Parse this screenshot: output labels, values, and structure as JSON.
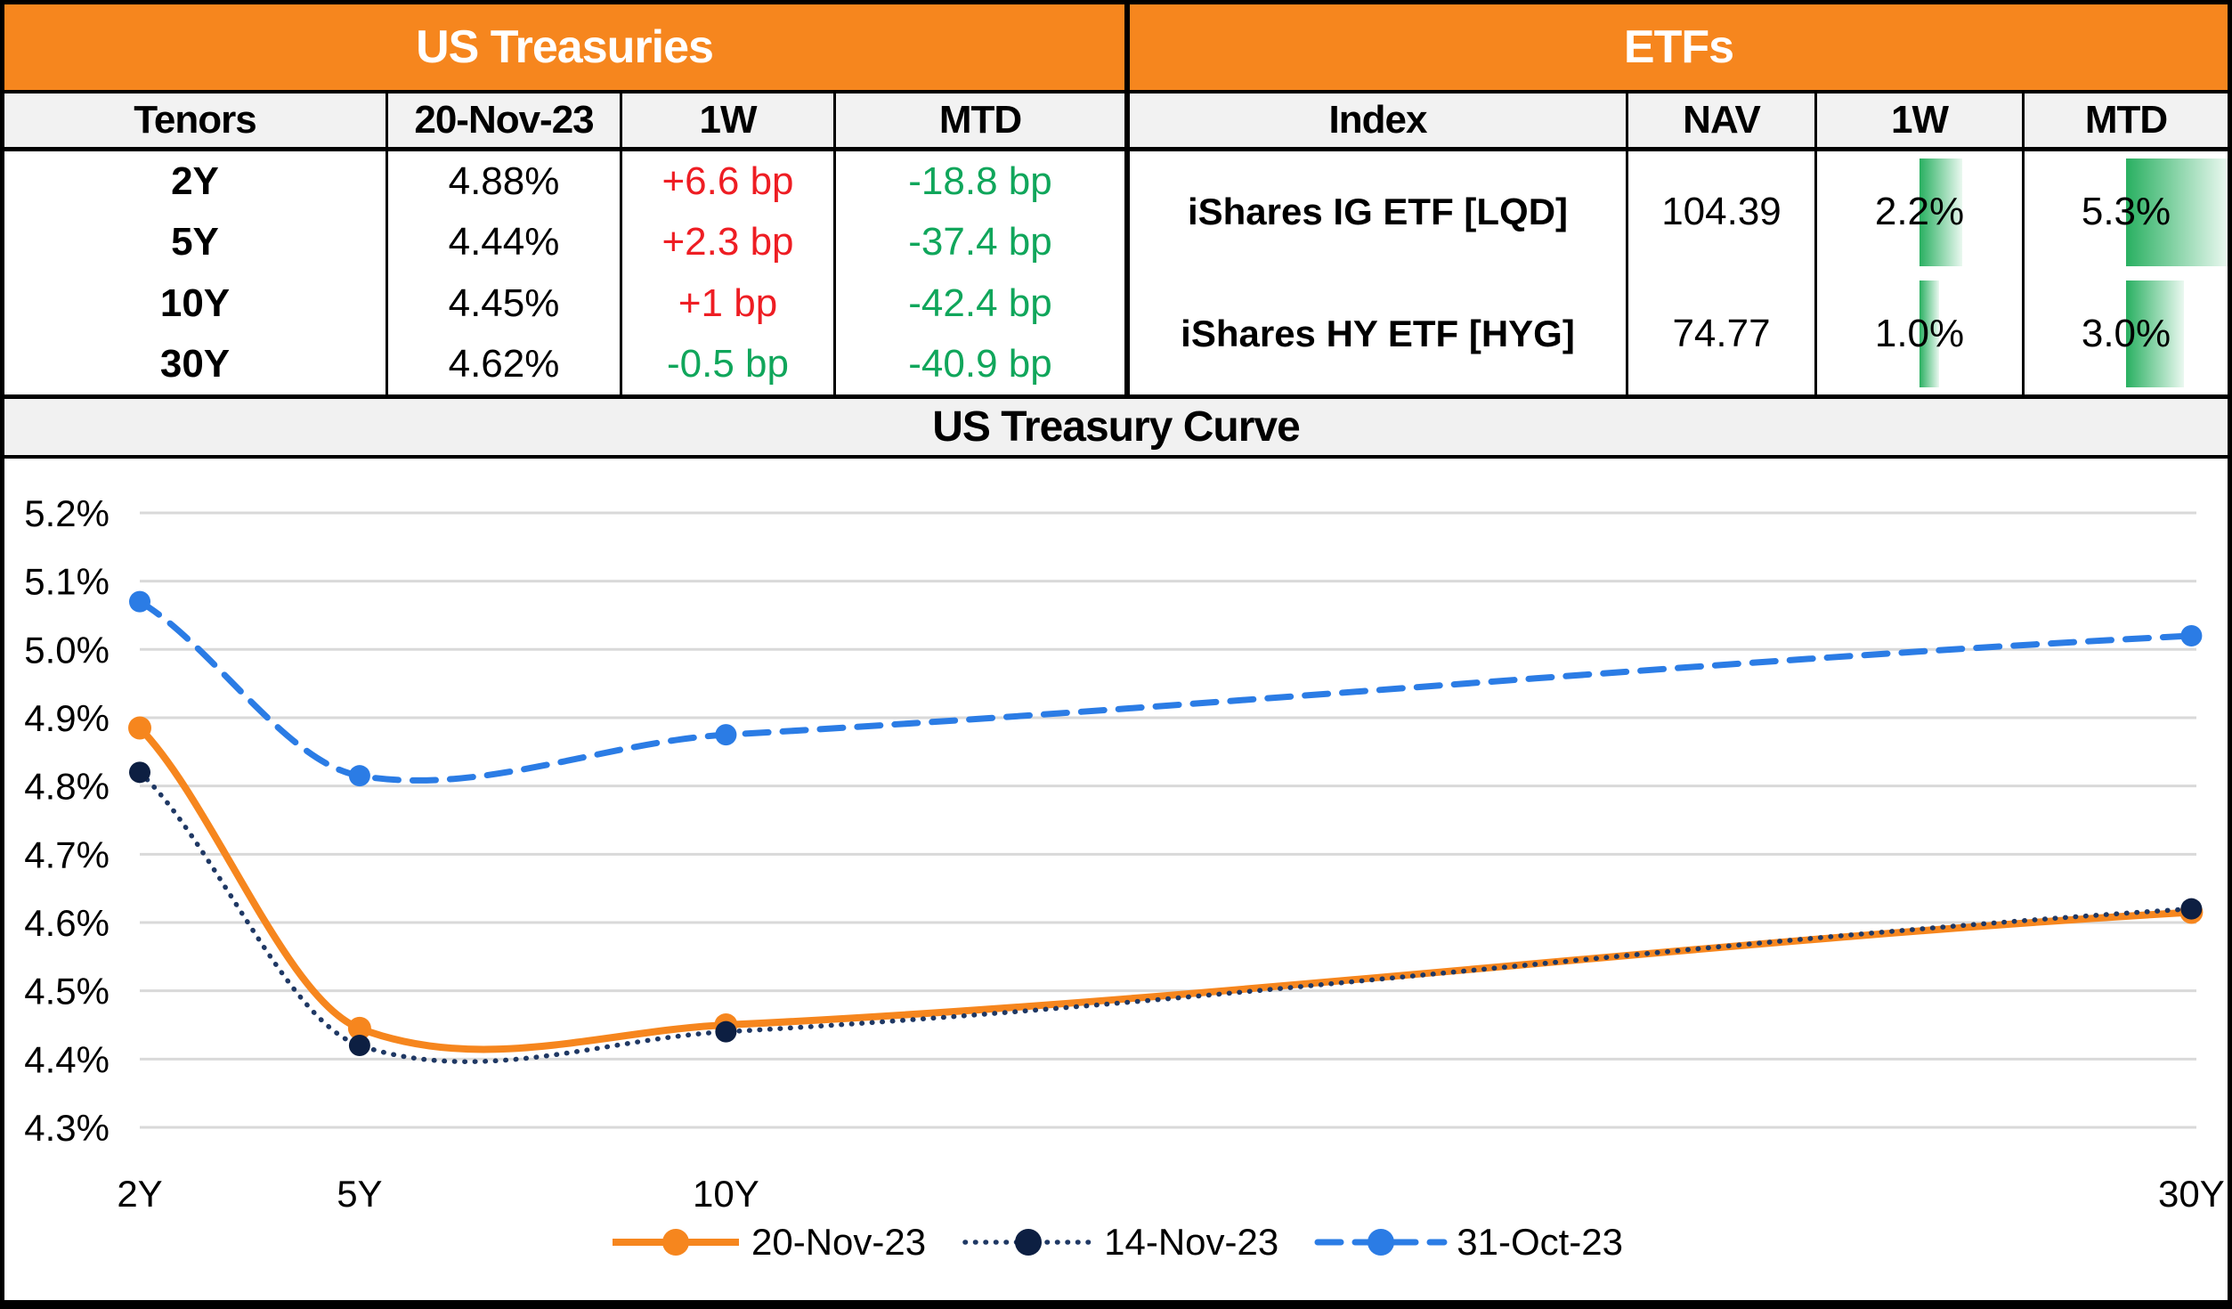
{
  "colors": {
    "accent_orange": "#F6861E",
    "positive_red": "#EE1D23",
    "negative_green": "#10A65B",
    "bar_green_start": "#29B061",
    "bar_green_end": "#EAF8F0",
    "grid": "#D9D9D9",
    "header_fill": "#F2F2F2",
    "band_fill": "#F1F1F1",
    "border": "#000000"
  },
  "us_treasuries": {
    "title": "US Treasuries",
    "columns": [
      "Tenors",
      "20-Nov-23",
      "1W",
      "MTD"
    ],
    "rows": [
      {
        "tenor": "2Y",
        "rate": "4.88%",
        "w1": "+6.6 bp",
        "mtd": "-18.8 bp"
      },
      {
        "tenor": "5Y",
        "rate": "4.44%",
        "w1": "+2.3 bp",
        "mtd": "-37.4 bp"
      },
      {
        "tenor": "10Y",
        "rate": "4.45%",
        "w1": "+1 bp",
        "mtd": "-42.4 bp"
      },
      {
        "tenor": "30Y",
        "rate": "4.62%",
        "w1": "-0.5 bp",
        "mtd": "-40.9 bp"
      }
    ]
  },
  "etfs": {
    "title": "ETFs",
    "columns": [
      "Index",
      "NAV",
      "1W",
      "MTD"
    ],
    "bar_scale_max": 5.3,
    "rows": [
      {
        "index": "iShares IG ETF [LQD]",
        "nav": "104.39",
        "w1": "2.2%",
        "w1_value": 2.2,
        "mtd": "5.3%",
        "mtd_value": 5.3
      },
      {
        "index": "iShares HY ETF [HYG]",
        "nav": "74.77",
        "w1": "1.0%",
        "w1_value": 1.0,
        "mtd": "3.0%",
        "mtd_value": 3.0
      }
    ]
  },
  "chart_data": {
    "type": "line",
    "title": "US Treasury Curve",
    "categories": [
      "2Y",
      "5Y",
      "10Y",
      "30Y"
    ],
    "x_years": [
      2,
      5,
      10,
      30
    ],
    "xlabel": "",
    "ylabel": "",
    "ylim": [
      4.3,
      5.2
    ],
    "ytick_step": 0.1,
    "ytick_format": "0.0%",
    "grid": true,
    "legend_position": "bottom",
    "smooth": true,
    "series": [
      {
        "name": "20-Nov-23",
        "style": "solid",
        "color": "#F6861E",
        "marker_color": "#F6861E",
        "values": [
          4.885,
          4.445,
          4.45,
          4.615
        ]
      },
      {
        "name": "14-Nov-23",
        "style": "dotted",
        "color": "#1F3864",
        "marker_color": "#0D1F42",
        "values": [
          4.82,
          4.42,
          4.44,
          4.62
        ]
      },
      {
        "name": "31-Oct-23",
        "style": "dashed",
        "color": "#2B7CE5",
        "marker_color": "#2B7CE5",
        "values": [
          5.07,
          4.815,
          4.875,
          5.02
        ]
      }
    ]
  }
}
